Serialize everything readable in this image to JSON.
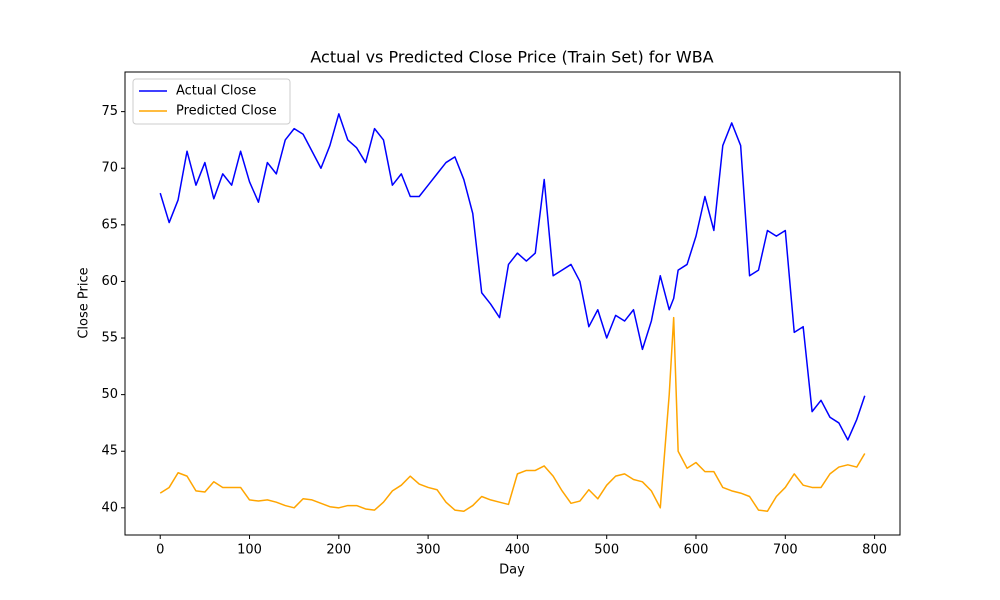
{
  "chart_data": {
    "type": "line",
    "title": "Actual vs Predicted Close Price (Train Set) for WBA",
    "x_label": "Day",
    "y_label": "Close Price",
    "x": [
      0,
      10,
      20,
      30,
      40,
      50,
      60,
      70,
      80,
      90,
      100,
      110,
      120,
      130,
      140,
      150,
      160,
      170,
      180,
      190,
      200,
      210,
      220,
      230,
      240,
      250,
      260,
      270,
      280,
      290,
      300,
      310,
      320,
      330,
      340,
      350,
      360,
      370,
      380,
      390,
      400,
      410,
      420,
      430,
      440,
      450,
      460,
      470,
      480,
      490,
      500,
      510,
      520,
      530,
      540,
      550,
      560,
      570,
      575,
      580,
      590,
      600,
      610,
      620,
      630,
      640,
      650,
      660,
      670,
      680,
      690,
      700,
      710,
      720,
      730,
      740,
      750,
      760,
      770,
      780,
      789
    ],
    "series": [
      {
        "name": "Actual Close",
        "color": "#0000ff",
        "values": [
          67.8,
          65.2,
          67.2,
          71.5,
          68.5,
          70.5,
          67.3,
          69.5,
          68.5,
          71.5,
          68.8,
          67.0,
          70.5,
          69.5,
          72.5,
          73.5,
          73.0,
          71.5,
          70.0,
          72.0,
          74.8,
          72.5,
          71.8,
          70.5,
          73.5,
          72.5,
          68.5,
          69.5,
          67.5,
          67.5,
          68.5,
          69.5,
          70.5,
          71.0,
          69.0,
          66.0,
          59.0,
          58.0,
          56.8,
          61.5,
          62.5,
          61.8,
          62.5,
          69.0,
          60.5,
          61.0,
          61.5,
          60.0,
          56.0,
          57.5,
          55.0,
          57.0,
          56.5,
          57.5,
          54.0,
          56.5,
          60.5,
          57.5,
          58.5,
          61.0,
          61.5,
          64.0,
          67.5,
          64.5,
          72.0,
          74.0,
          72.0,
          60.5,
          61.0,
          64.5,
          64.0,
          64.5,
          55.5,
          56.0,
          48.5,
          49.5,
          48.0,
          47.5,
          46.0,
          47.8,
          49.9
        ]
      },
      {
        "name": "Predicted Close",
        "color": "#ffa500",
        "values": [
          41.3,
          41.8,
          43.1,
          42.8,
          41.5,
          41.4,
          42.3,
          41.8,
          41.8,
          41.8,
          40.7,
          40.6,
          40.7,
          40.5,
          40.2,
          40.0,
          40.8,
          40.7,
          40.4,
          40.1,
          40.0,
          40.2,
          40.2,
          39.9,
          39.8,
          40.5,
          41.5,
          42.0,
          42.8,
          42.1,
          41.8,
          41.6,
          40.5,
          39.8,
          39.7,
          40.2,
          41.0,
          40.7,
          40.5,
          40.3,
          43.0,
          43.3,
          43.3,
          43.7,
          42.8,
          41.5,
          40.4,
          40.6,
          41.6,
          40.8,
          42.0,
          42.8,
          43.0,
          42.5,
          42.3,
          41.5,
          40.0,
          50.0,
          56.8,
          45.0,
          43.5,
          44.0,
          43.2,
          43.2,
          41.8,
          41.5,
          41.3,
          41.0,
          39.8,
          39.7,
          41.0,
          41.8,
          43.0,
          42.0,
          41.8,
          41.8,
          43.0,
          43.6,
          43.8,
          43.6,
          44.8
        ]
      }
    ],
    "xlim": [
      -39.45,
      828.45
    ],
    "xticks": [
      0,
      100,
      200,
      300,
      400,
      500,
      600,
      700,
      800
    ],
    "ylim": [
      37.6,
      78.5
    ],
    "yticks": [
      40,
      45,
      50,
      55,
      60,
      65,
      70,
      75
    ],
    "grid": false,
    "legend": "upper-left"
  }
}
